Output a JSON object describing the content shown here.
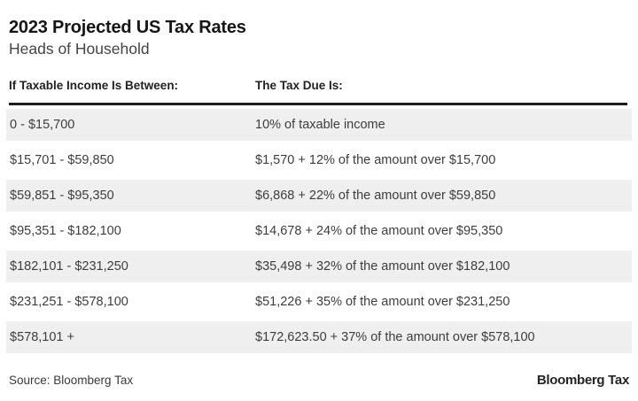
{
  "chart_data": {
    "type": "table",
    "title": "2023 Projected US Tax Rates",
    "subtitle": "Heads of Household",
    "columns": [
      "If Taxable Income Is Between:",
      "The Tax Due Is:"
    ],
    "rows": [
      [
        "0 - $15,700",
        "10% of taxable income"
      ],
      [
        "$15,701 - $59,850",
        "$1,570 + 12% of the amount over $15,700"
      ],
      [
        "$59,851 - $95,350",
        "$6,868 + 22% of the amount over $59,850"
      ],
      [
        "$95,351 - $182,100",
        "$14,678 + 24% of the amount over $95,350"
      ],
      [
        "$182,101 - $231,250",
        "$35,498 + 32% of the amount over $182,100"
      ],
      [
        "$231,251 - $578,100",
        "$51,226 + 35% of the amount over $231,250"
      ],
      [
        "$578,101 +",
        "$172,623.50 + 37% of the amount over $578,100"
      ]
    ],
    "layout_hints": {
      "alternating_row_shading": "odd rows shaded",
      "header_rule": "thick black line under column headers"
    }
  },
  "footer": {
    "source_label": "Source: Bloomberg Tax",
    "brand_label": "Bloomberg Tax"
  },
  "colors": {
    "row_alt_bg": "#efefef",
    "row_text": "#3d3d3d",
    "heading_text": "#161616",
    "subtitle_text": "#444444",
    "rule": "#1e1e1e"
  }
}
